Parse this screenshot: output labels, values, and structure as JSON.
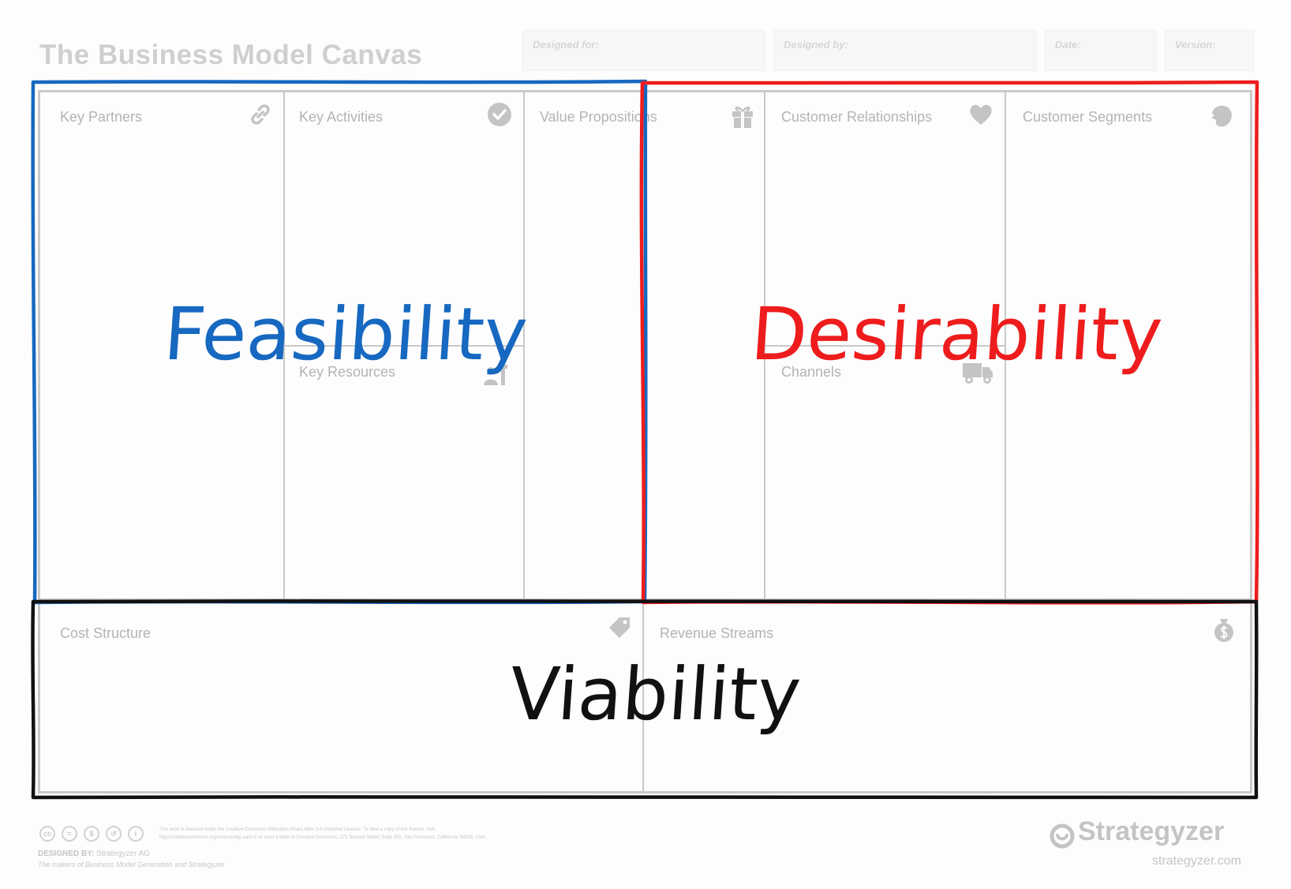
{
  "header": {
    "title": "The Business Model Canvas",
    "designed_for": "Designed for:",
    "designed_by": "Designed by:",
    "date": "Date:",
    "version": "Version:"
  },
  "blocks": {
    "key_partners": {
      "label": "Key Partners",
      "icon": "link-icon"
    },
    "key_activities": {
      "label": "Key Activities",
      "icon": "checkmark-icon"
    },
    "key_resources": {
      "label": "Key Resources",
      "icon": "worker-icon"
    },
    "value_propositions": {
      "label": "Value Propositions",
      "icon": "gift-icon"
    },
    "customer_relationships": {
      "label": "Customer Relationships",
      "icon": "heart-icon"
    },
    "channels": {
      "label": "Channels",
      "icon": "truck-icon"
    },
    "customer_segments": {
      "label": "Customer Segments",
      "icon": "head-icon"
    },
    "cost_structure": {
      "label": "Cost Structure",
      "icon": "price-tag-icon"
    },
    "revenue_streams": {
      "label": "Revenue Streams",
      "icon": "money-bag-icon"
    }
  },
  "overlay": {
    "feasibility": {
      "label": "Feasibility",
      "color": "#1668c0"
    },
    "desirability": {
      "label": "Desirability",
      "color": "#ee1c1c"
    },
    "viability": {
      "label": "Viability",
      "color": "#111111"
    }
  },
  "footer": {
    "license_line1": "This work is licensed under the Creative Commons Attribution-Share Alike 3.0 Unported License. To view a copy of this license, visit",
    "license_line2": "http://creativecommons.org/licenses/by-sa/3.0/ or send a letter to Creative Commons, 171 Second Street, Suite 300, San Francisco, California, 94105, USA.",
    "designed_by_label": "DESIGNED BY:",
    "designed_by_value": "Strategyzer AG",
    "tagline": "The makers of Business Model Generation and Strategyzer",
    "brand": "Strategyzer",
    "brand_url": "strategyzer.com"
  }
}
